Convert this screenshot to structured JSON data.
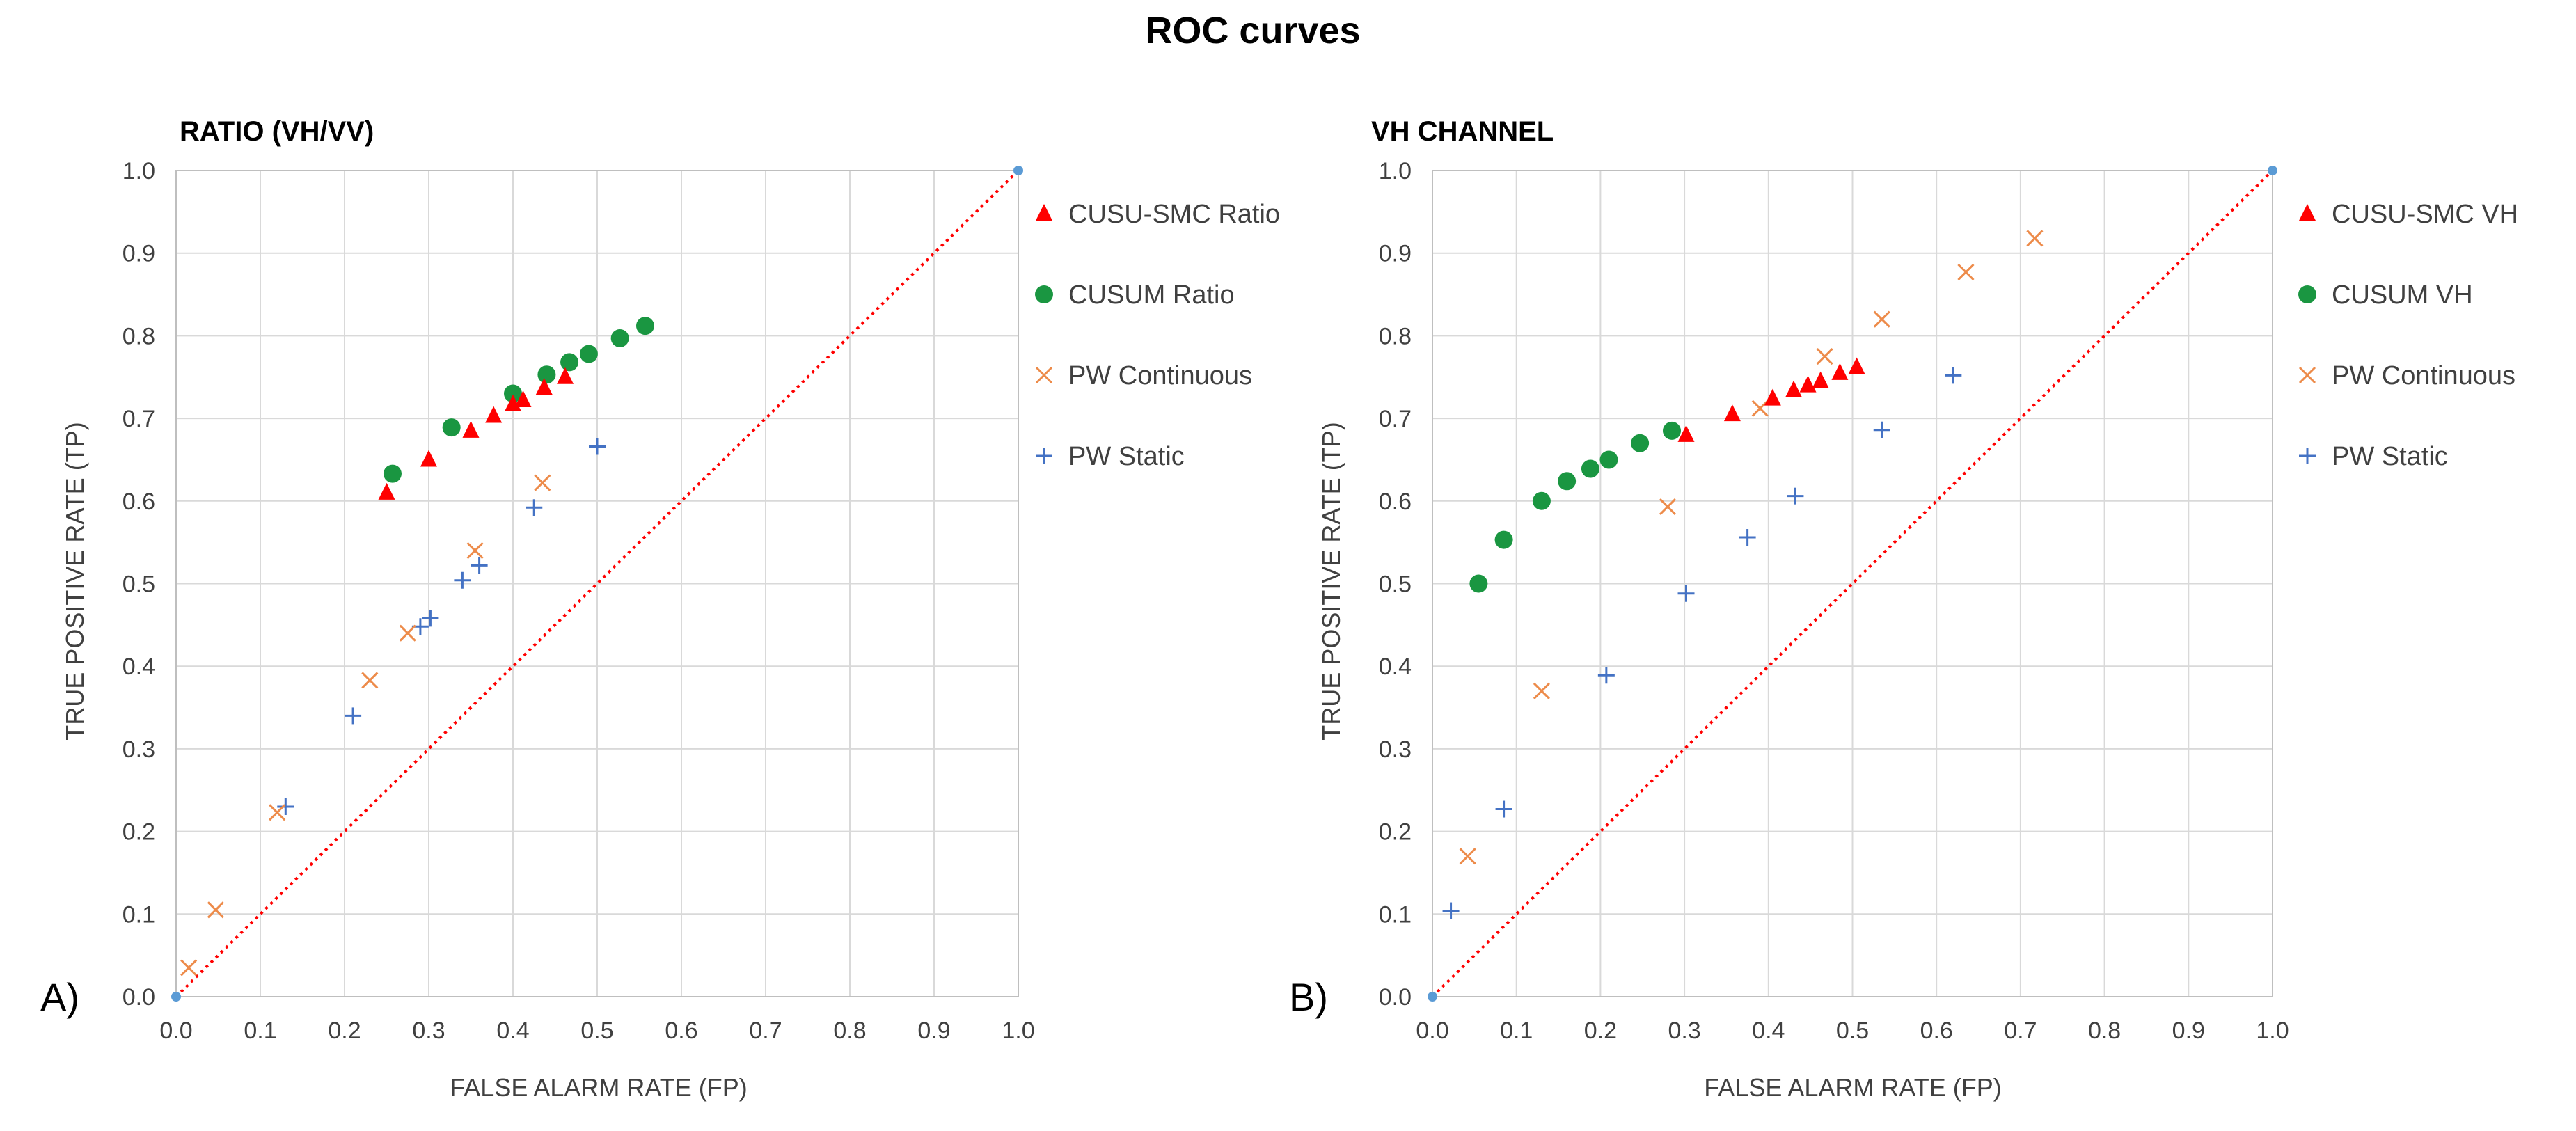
{
  "title": "ROC curves",
  "colors": {
    "cusu_smc": "#ff0000",
    "cusum": "#1a9641",
    "pw_continuous": "#ed8b4a",
    "pw_static": "#4472c4",
    "diagonal": "#ff0000",
    "endpoint": "#5b9bd5"
  },
  "chart_data": [
    {
      "type": "scatter",
      "panel_label": "A)",
      "title": "RATIO (VH/VV)",
      "xlabel": "FALSE ALARM RATE (FP)",
      "ylabel": "TRUE POSITIVE RATE (TP)",
      "xlim": [
        0,
        1
      ],
      "ylim": [
        0,
        1
      ],
      "grid": true,
      "legend": "right",
      "ticks": [
        "0.0",
        "0.1",
        "0.2",
        "0.3",
        "0.4",
        "0.5",
        "0.6",
        "0.7",
        "0.8",
        "0.9",
        "1.0"
      ],
      "diagonal": [
        [
          0,
          0
        ],
        [
          1,
          1
        ]
      ],
      "series": [
        {
          "name": "CUSU-SMC Ratio",
          "marker": "triangle",
          "color": "#ff0000",
          "points": [
            [
              0.25,
              0.61
            ],
            [
              0.3,
              0.65
            ],
            [
              0.35,
              0.685
            ],
            [
              0.377,
              0.703
            ],
            [
              0.4,
              0.717
            ],
            [
              0.412,
              0.722
            ],
            [
              0.437,
              0.737
            ],
            [
              0.462,
              0.75
            ]
          ]
        },
        {
          "name": "CUSUM Ratio",
          "marker": "circle",
          "color": "#1a9641",
          "points": [
            [
              0.257,
              0.633
            ],
            [
              0.327,
              0.689
            ],
            [
              0.4,
              0.73
            ],
            [
              0.44,
              0.753
            ],
            [
              0.467,
              0.768
            ],
            [
              0.49,
              0.778
            ],
            [
              0.527,
              0.797
            ],
            [
              0.557,
              0.812
            ]
          ]
        },
        {
          "name": "PW Continuous",
          "marker": "x",
          "color": "#ed8b4a",
          "points": [
            [
              0.015,
              0.035
            ],
            [
              0.047,
              0.105
            ],
            [
              0.12,
              0.223
            ],
            [
              0.23,
              0.383
            ],
            [
              0.275,
              0.44
            ],
            [
              0.355,
              0.54
            ],
            [
              0.435,
              0.622
            ]
          ]
        },
        {
          "name": "PW Static",
          "marker": "plus",
          "color": "#4472c4",
          "points": [
            [
              0.13,
              0.23
            ],
            [
              0.21,
              0.34
            ],
            [
              0.29,
              0.448
            ],
            [
              0.302,
              0.458
            ],
            [
              0.34,
              0.504
            ],
            [
              0.36,
              0.522
            ],
            [
              0.425,
              0.592
            ],
            [
              0.5,
              0.666
            ]
          ]
        }
      ]
    },
    {
      "type": "scatter",
      "panel_label": "B)",
      "title": "VH CHANNEL",
      "xlabel": "FALSE ALARM RATE (FP)",
      "ylabel": "TRUE POSITIVE RATE (TP)",
      "xlim": [
        0,
        1
      ],
      "ylim": [
        0,
        1
      ],
      "grid": true,
      "legend": "right",
      "ticks": [
        "0.0",
        "0.1",
        "0.2",
        "0.3",
        "0.4",
        "0.5",
        "0.6",
        "0.7",
        "0.8",
        "0.9",
        "1.0"
      ],
      "diagonal": [
        [
          0,
          0
        ],
        [
          1,
          1
        ]
      ],
      "series": [
        {
          "name": "CUSU-SMC VH",
          "marker": "triangle",
          "color": "#ff0000",
          "points": [
            [
              0.302,
              0.68
            ],
            [
              0.357,
              0.705
            ],
            [
              0.405,
              0.724
            ],
            [
              0.43,
              0.734
            ],
            [
              0.447,
              0.74
            ],
            [
              0.462,
              0.745
            ],
            [
              0.485,
              0.755
            ],
            [
              0.505,
              0.762
            ]
          ]
        },
        {
          "name": "CUSUM VH",
          "marker": "circle",
          "color": "#1a9641",
          "points": [
            [
              0.055,
              0.5
            ],
            [
              0.085,
              0.553
            ],
            [
              0.13,
              0.6
            ],
            [
              0.16,
              0.624
            ],
            [
              0.188,
              0.639
            ],
            [
              0.21,
              0.65
            ],
            [
              0.247,
              0.67
            ],
            [
              0.285,
              0.685
            ]
          ]
        },
        {
          "name": "PW Continuous",
          "marker": "x",
          "color": "#ed8b4a",
          "points": [
            [
              0.042,
              0.17
            ],
            [
              0.13,
              0.37
            ],
            [
              0.28,
              0.593
            ],
            [
              0.39,
              0.712
            ],
            [
              0.467,
              0.775
            ],
            [
              0.535,
              0.82
            ],
            [
              0.635,
              0.877
            ],
            [
              0.717,
              0.918
            ]
          ]
        },
        {
          "name": "PW Static",
          "marker": "plus",
          "color": "#4472c4",
          "points": [
            [
              0.022,
              0.104
            ],
            [
              0.085,
              0.227
            ],
            [
              0.207,
              0.389
            ],
            [
              0.302,
              0.488
            ],
            [
              0.375,
              0.556
            ],
            [
              0.432,
              0.606
            ],
            [
              0.535,
              0.686
            ],
            [
              0.62,
              0.752
            ]
          ]
        }
      ]
    }
  ]
}
